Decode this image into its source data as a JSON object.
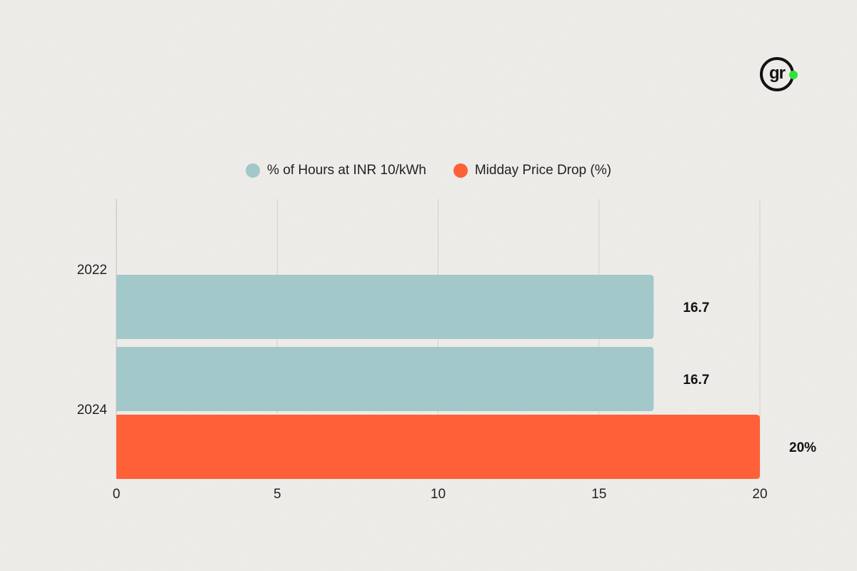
{
  "logo": {
    "text": "gr",
    "dot_color": "#2ee33b"
  },
  "chart_data": {
    "type": "bar",
    "orientation": "horizontal",
    "categories": [
      "2022",
      "2024"
    ],
    "series": [
      {
        "name": "% of Hours at INR 10/kWh",
        "color": "#a2c8c9",
        "values": [
          16.7,
          16.7
        ],
        "labels": [
          "16.7",
          "16.7"
        ]
      },
      {
        "name": "Midday Price Drop (%)",
        "color": "#ff6038",
        "values": [
          null,
          20
        ],
        "labels": [
          "",
          "20%"
        ]
      }
    ],
    "xlim": [
      0,
      20
    ],
    "xticks": [
      0,
      5,
      10,
      15,
      20
    ],
    "grid": true,
    "legend": "top-center"
  }
}
